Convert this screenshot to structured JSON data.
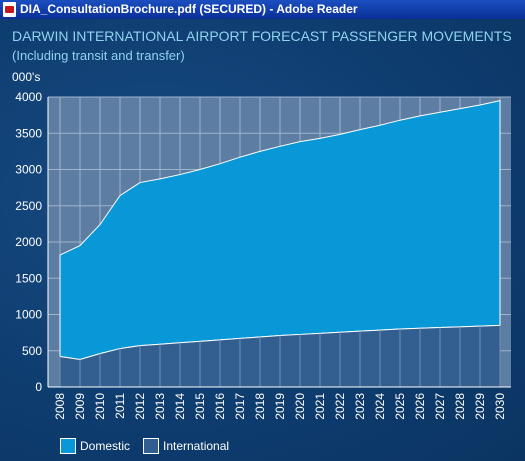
{
  "window": {
    "title": "DIA_ConsultationBrochure.pdf (SECURED) - Adobe Reader",
    "icon": "pdf-icon"
  },
  "colors": {
    "domestic": "#0898d8",
    "international": "#325f8f",
    "plot_background": "#5d7da3",
    "gridline": "#9fb3cb",
    "title": "#8fd3ef"
  },
  "chart_data": {
    "type": "area",
    "stacked": true,
    "title": "DARWIN INTERNATIONAL AIRPORT FORECAST PASSENGER MOVEMENTS",
    "subtitle": "(Including transit and transfer)",
    "ylabel": "000's",
    "xlabel": "",
    "ylim": [
      0,
      4000
    ],
    "yticks": [
      0,
      500,
      1000,
      1500,
      2000,
      2500,
      3000,
      3500,
      4000
    ],
    "grid": true,
    "legend": "bottom-left",
    "categories": [
      "2008",
      "2009",
      "2010",
      "2011",
      "2012",
      "2013",
      "2014",
      "2015",
      "2016",
      "2017",
      "2018",
      "2019",
      "2020",
      "2021",
      "2022",
      "2023",
      "2024",
      "2025",
      "2026",
      "2027",
      "2028",
      "2029",
      "2030"
    ],
    "series": [
      {
        "name": "International",
        "color": "#325f8f",
        "values": [
          420,
          380,
          460,
          530,
          570,
          590,
          610,
          630,
          650,
          670,
          690,
          710,
          725,
          740,
          755,
          770,
          785,
          800,
          810,
          820,
          830,
          840,
          850
        ]
      },
      {
        "name": "Domestic",
        "color": "#0898d8",
        "values": [
          1400,
          1570,
          1780,
          2110,
          2250,
          2280,
          2320,
          2370,
          2430,
          2500,
          2560,
          2610,
          2660,
          2690,
          2730,
          2780,
          2825,
          2880,
          2930,
          2970,
          3010,
          3050,
          3100
        ]
      }
    ]
  }
}
